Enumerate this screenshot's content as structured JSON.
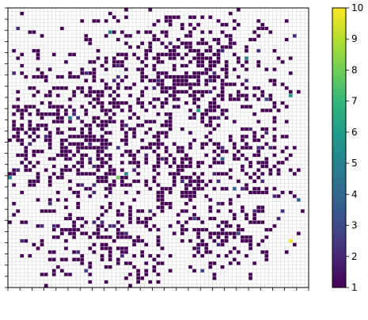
{
  "chart_data": {
    "type": "heatmap",
    "title": "",
    "xlabel": "",
    "ylabel": "",
    "grid": true,
    "grid_size": [
      75,
      75
    ],
    "description_of_values": "Sparse count grid; most occupied cells have value 1 (dark purple), a few cells reach higher values up to about 10.",
    "colorbar": {
      "colormap": "viridis",
      "min": 1,
      "max": 10,
      "ticks": [
        1,
        2,
        3,
        4,
        5,
        6,
        7,
        8,
        9,
        10
      ],
      "tick_labels": [
        "1",
        "2",
        "3",
        "4",
        "5",
        "6",
        "7",
        "8",
        "9",
        "10"
      ]
    },
    "highlight_cells": [
      {
        "col": 70,
        "row": 62,
        "value": 10
      },
      {
        "col": 70,
        "row": 23,
        "value": 6
      },
      {
        "col": 25,
        "row": 6,
        "value": 5
      },
      {
        "col": 59,
        "row": 13,
        "value": 5
      },
      {
        "col": 47,
        "row": 27,
        "value": 6
      },
      {
        "col": 15,
        "row": 29,
        "value": 5
      },
      {
        "col": 0,
        "row": 45,
        "value": 5
      },
      {
        "col": 27,
        "row": 45,
        "value": 8
      },
      {
        "col": 29,
        "row": 44,
        "value": 5
      },
      {
        "col": 53,
        "row": 40,
        "value": 4
      },
      {
        "col": 56,
        "row": 48,
        "value": 4
      },
      {
        "col": 46,
        "row": 56,
        "value": 3
      },
      {
        "col": 57,
        "row": 60,
        "value": 3
      },
      {
        "col": 35,
        "row": 54,
        "value": 2
      },
      {
        "col": 60,
        "row": 32,
        "value": 2
      },
      {
        "col": 19,
        "row": 70,
        "value": 3
      },
      {
        "col": 48,
        "row": 70,
        "value": 3
      },
      {
        "col": 17,
        "row": 65,
        "value": 2
      },
      {
        "col": 64,
        "row": 24,
        "value": 3
      },
      {
        "col": 72,
        "row": 51,
        "value": 4
      }
    ],
    "colors": {
      "grid_line": "#d3d3d3",
      "axes": "#000000"
    }
  }
}
